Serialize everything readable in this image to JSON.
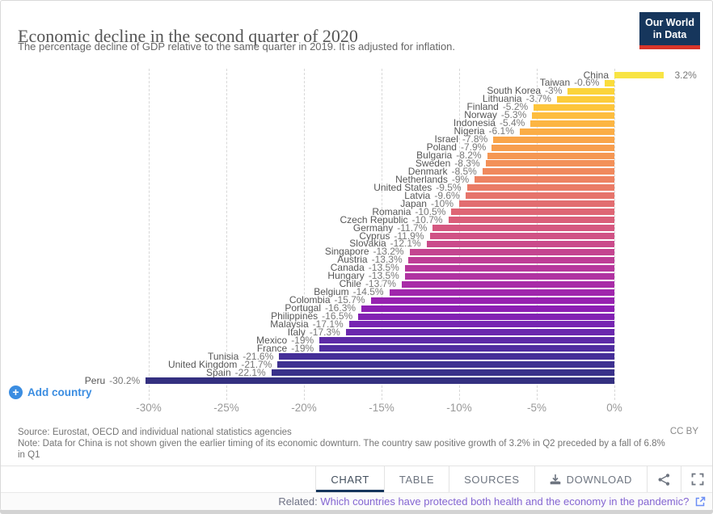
{
  "header": {
    "title": "Economic decline in the second quarter of 2020",
    "subtitle": "The percentage decline of GDP relative to the same quarter in 2019. It is adjusted for inflation.",
    "logo": {
      "line1": "Our World",
      "line2": "in Data",
      "bg_color": "#16365c",
      "accent_color": "#d8352a"
    }
  },
  "chart_data": {
    "type": "bar",
    "orientation": "horizontal",
    "title": "Economic decline in the second quarter of 2020",
    "xlabel": "",
    "ylabel": "",
    "unit": "%",
    "grid": "dashed-vertical",
    "legend": "none",
    "axis": {
      "range": [
        -30,
        3.5
      ],
      "ticks": [
        {
          "label": "-30%",
          "value": -30
        },
        {
          "label": "-25%",
          "value": -25
        },
        {
          "label": "-20%",
          "value": -20
        },
        {
          "label": "-15%",
          "value": -15
        },
        {
          "label": "-10%",
          "value": -10
        },
        {
          "label": "-5%",
          "value": -5
        },
        {
          "label": "0%",
          "value": 0
        }
      ]
    },
    "points": [
      {
        "label": "China",
        "value": 3.2,
        "display": "3.2%",
        "color": "#f8e444"
      },
      {
        "label": "Taiwan",
        "value": -0.6,
        "display": "-0.6%",
        "color": "#fadc3c"
      },
      {
        "label": "South Korea",
        "value": -3,
        "display": "-3%",
        "color": "#fbd43a"
      },
      {
        "label": "Lithuania",
        "value": -3.7,
        "display": "-3.7%",
        "color": "#fccc3b"
      },
      {
        "label": "Finland",
        "value": -5.2,
        "display": "-5.2%",
        "color": "#fdc53c"
      },
      {
        "label": "Norway",
        "value": -5.3,
        "display": "-5.3%",
        "color": "#fdbd3f"
      },
      {
        "label": "Indonesia",
        "value": -5.4,
        "display": "-5.4%",
        "color": "#fcb542"
      },
      {
        "label": "Nigeria",
        "value": -6.1,
        "display": "-6.1%",
        "color": "#fbad46"
      },
      {
        "label": "Israel",
        "value": -7.8,
        "display": "-7.8%",
        "color": "#f9a54a"
      },
      {
        "label": "Poland",
        "value": -7.9,
        "display": "-7.9%",
        "color": "#f79e4e"
      },
      {
        "label": "Bulgaria",
        "value": -8.2,
        "display": "-8.2%",
        "color": "#f59753"
      },
      {
        "label": "Sweden",
        "value": -8.3,
        "display": "-8.3%",
        "color": "#f39058"
      },
      {
        "label": "Denmark",
        "value": -8.5,
        "display": "-8.5%",
        "color": "#f0895d"
      },
      {
        "label": "Netherlands",
        "value": -9,
        "display": "-9%",
        "color": "#ed8262"
      },
      {
        "label": "United States",
        "value": -9.5,
        "display": "-9.5%",
        "color": "#ea7b66"
      },
      {
        "label": "Latvia",
        "value": -9.6,
        "display": "-9.6%",
        "color": "#e6746b"
      },
      {
        "label": "Japan",
        "value": -10,
        "display": "-10%",
        "color": "#e26d70"
      },
      {
        "label": "Romania",
        "value": -10.5,
        "display": "-10.5%",
        "color": "#de6675"
      },
      {
        "label": "Czech Republic",
        "value": -10.7,
        "display": "-10.7%",
        "color": "#da5f7a"
      },
      {
        "label": "Germany",
        "value": -11.7,
        "display": "-11.7%",
        "color": "#d55880"
      },
      {
        "label": "Cyprus",
        "value": -11.9,
        "display": "-11.9%",
        "color": "#d05285"
      },
      {
        "label": "Slovakia",
        "value": -12.1,
        "display": "-12.1%",
        "color": "#ca4b8b"
      },
      {
        "label": "Singapore",
        "value": -13.2,
        "display": "-13.2%",
        "color": "#c44590"
      },
      {
        "label": "Austria",
        "value": -13.3,
        "display": "-13.3%",
        "color": "#be3e96"
      },
      {
        "label": "Canada",
        "value": -13.5,
        "display": "-13.5%",
        "color": "#b7389c"
      },
      {
        "label": "Hungary",
        "value": -13.5,
        "display": "-13.5%",
        "color": "#b032a1"
      },
      {
        "label": "Chile",
        "value": -13.7,
        "display": "-13.7%",
        "color": "#a82ca7"
      },
      {
        "label": "Belgium",
        "value": -14.5,
        "display": "-14.5%",
        "color": "#a026ac"
      },
      {
        "label": "Colombia",
        "value": -15.7,
        "display": "-15.7%",
        "color": "#9722b0"
      },
      {
        "label": "Portugal",
        "value": -16.3,
        "display": "-16.3%",
        "color": "#8d1fb3"
      },
      {
        "label": "Philippines",
        "value": -16.5,
        "display": "-16.5%",
        "color": "#8221b3"
      },
      {
        "label": "Malaysia",
        "value": -17.1,
        "display": "-17.1%",
        "color": "#7625b1"
      },
      {
        "label": "Italy",
        "value": -17.3,
        "display": "-17.3%",
        "color": "#6a28ad"
      },
      {
        "label": "Mexico",
        "value": -19,
        "display": "-19%",
        "color": "#5d2ba7"
      },
      {
        "label": "France",
        "value": -19,
        "display": "-19%",
        "color": "#502da0"
      },
      {
        "label": "Tunisia",
        "value": -21.6,
        "display": "-21.6%",
        "color": "#452f98"
      },
      {
        "label": "United Kingdom",
        "value": -21.7,
        "display": "-21.7%",
        "color": "#3e3191"
      },
      {
        "label": "Spain",
        "value": -22.1,
        "display": "-22.1%",
        "color": "#39318a"
      },
      {
        "label": "Peru",
        "value": -30.2,
        "display": "-30.2%",
        "color": "#343080"
      }
    ]
  },
  "controls": {
    "add_country_label": "Add country",
    "add_country_color": "#3b8de1"
  },
  "footer": {
    "source": "Source: Eurostat, OECD and individual national statistics agencies",
    "note": "Note: Data for China is not shown given the earlier timing of its economic downturn. The country saw positive growth of 3.2% in Q2 preceded by a fall of 6.8% in Q1",
    "license": "CC BY"
  },
  "toolbar": {
    "tabs": [
      {
        "label": "CHART",
        "active": true
      },
      {
        "label": "TABLE",
        "active": false
      },
      {
        "label": "SOURCES",
        "active": false
      },
      {
        "label": "DOWNLOAD",
        "active": false
      }
    ],
    "active_underline_color": "#16365c"
  },
  "related": {
    "label": "Related:",
    "link_text": "Which countries have protected both health and the economy in the pandemic?",
    "link_color": "#8465d2"
  }
}
